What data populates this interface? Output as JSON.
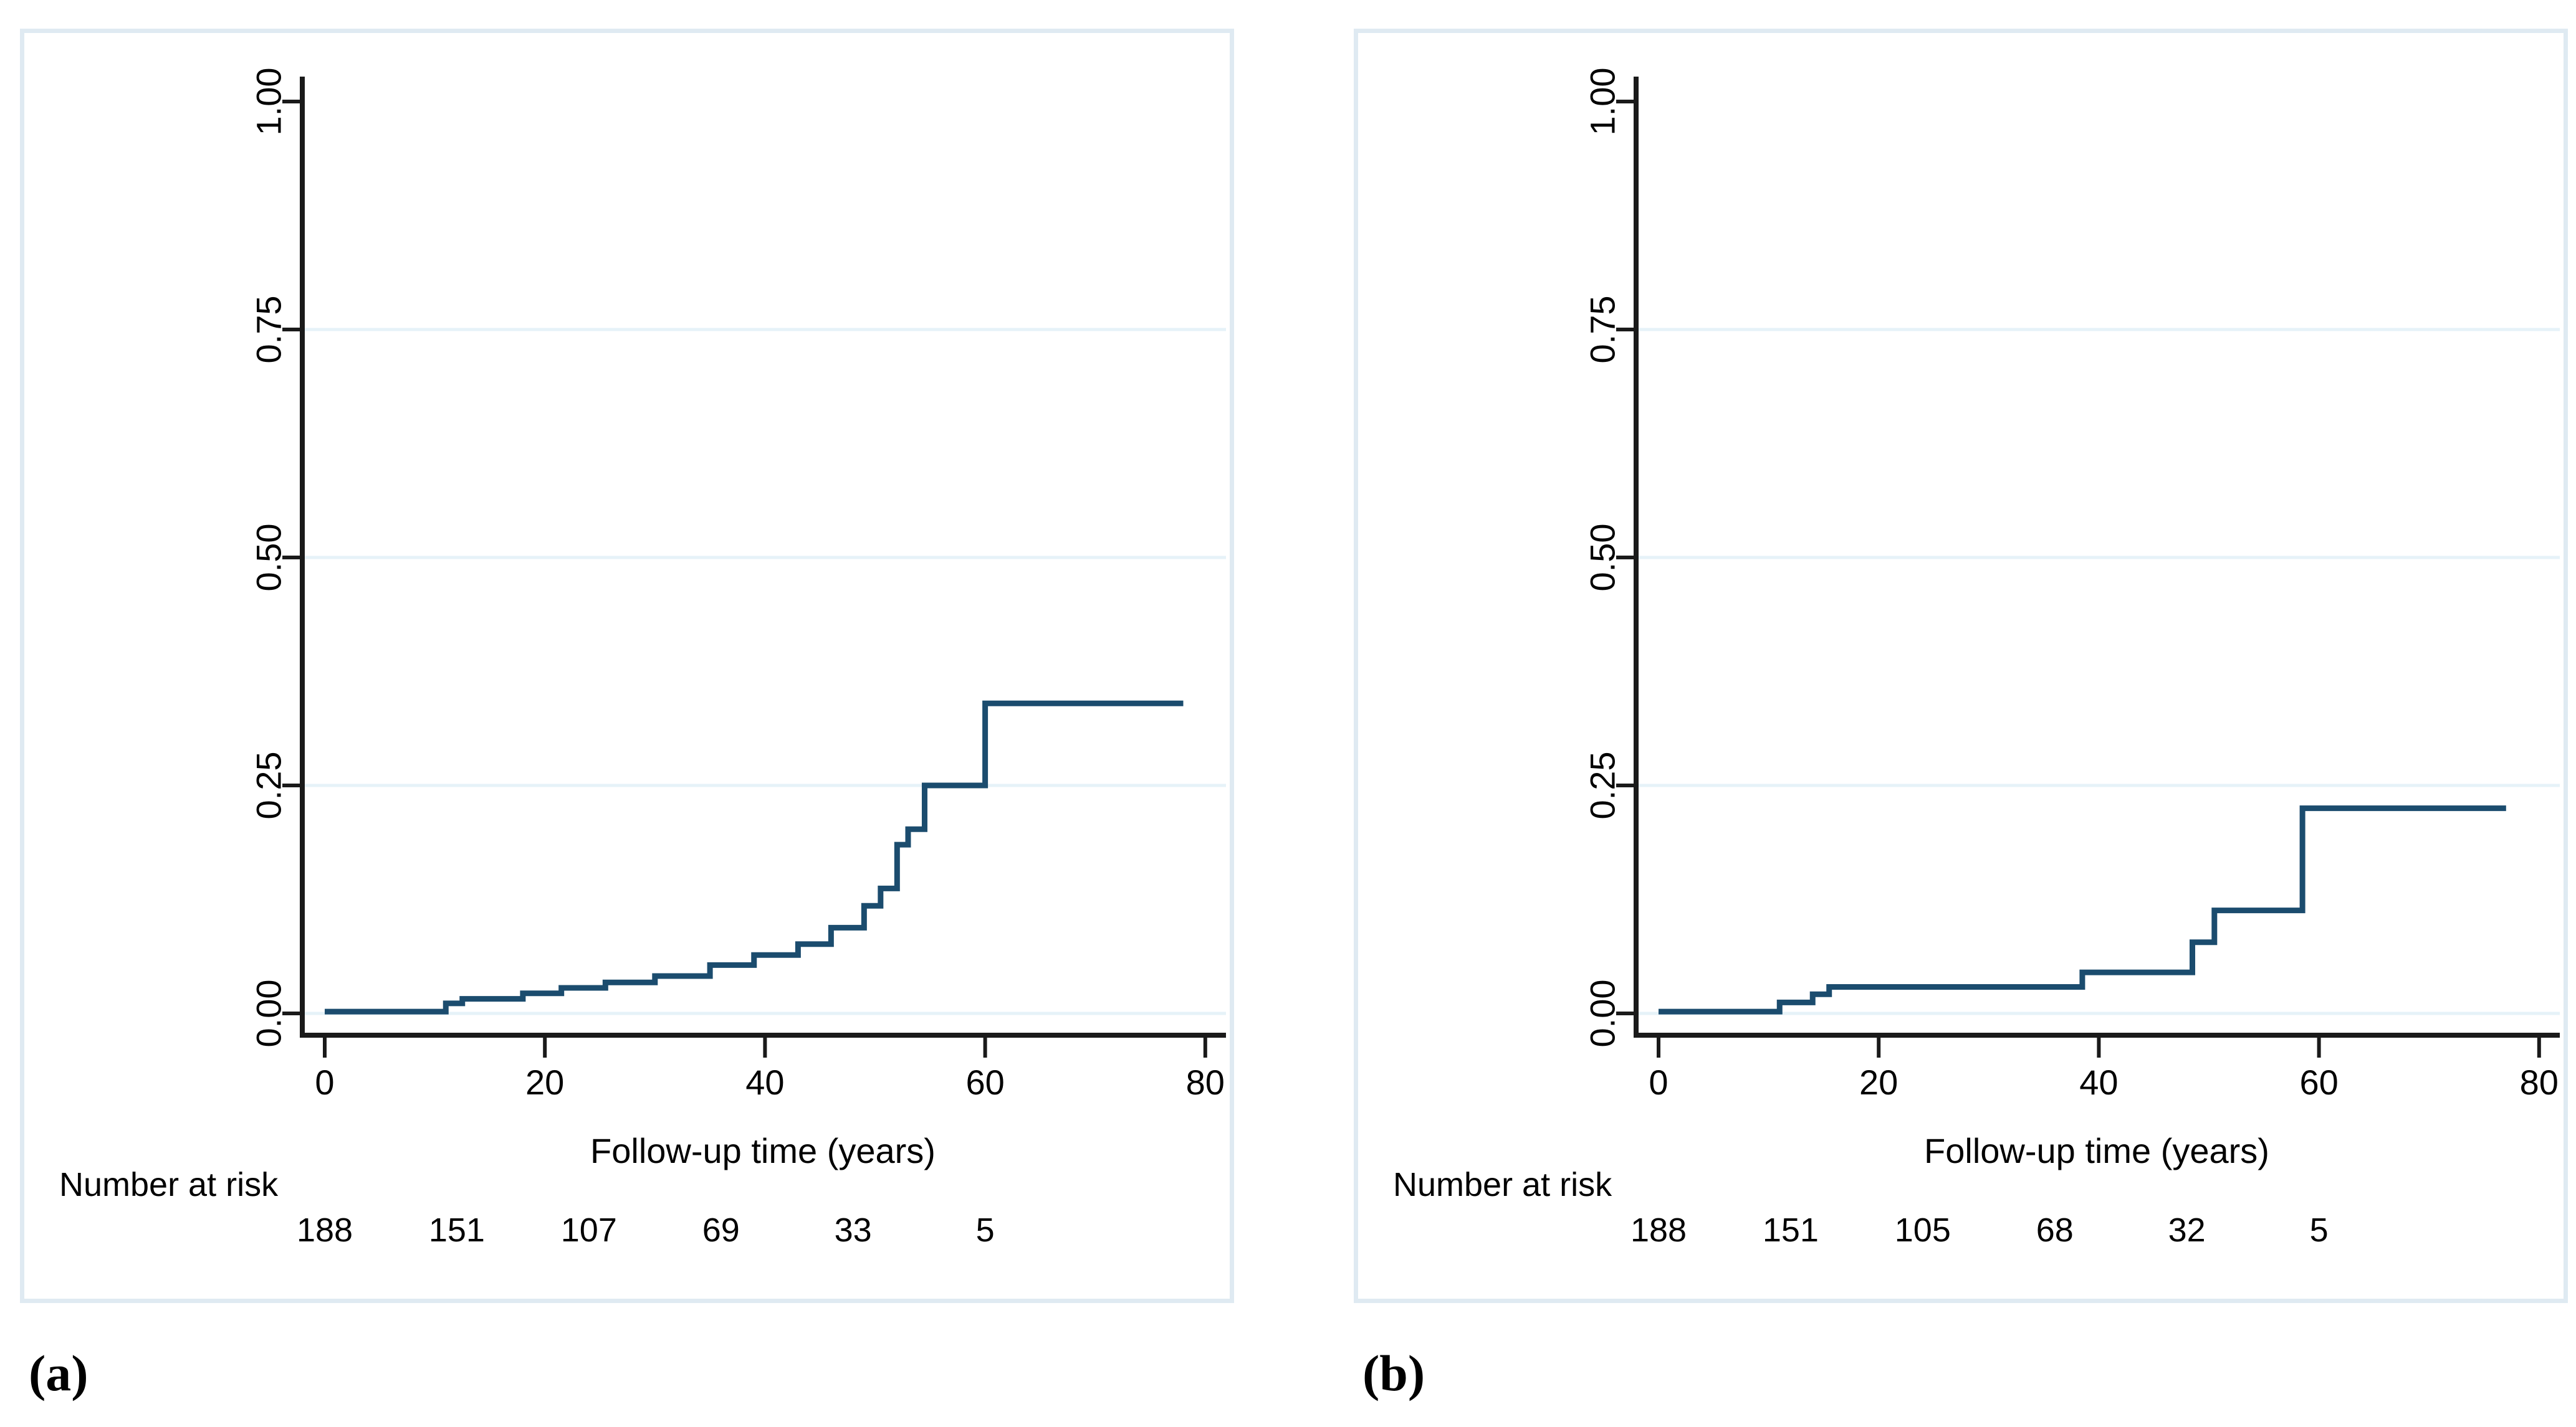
{
  "figure": {
    "panels": [
      {
        "letter": "(a)",
        "xlabel": "Follow-up time (years)",
        "risk_label": "Number at risk",
        "ytick_labels": [
          "1.00",
          "0.75",
          "0.50",
          "0.25",
          "0.00"
        ],
        "xtick_labels": [
          "0",
          "20",
          "40",
          "60",
          "80"
        ],
        "number_at_risk": [
          "188",
          "151",
          "107",
          "69",
          "33",
          "5"
        ]
      },
      {
        "letter": "(b)",
        "xlabel": "Follow-up time (years)",
        "risk_label": "Number at risk",
        "ytick_labels": [
          "1.00",
          "0.75",
          "0.50",
          "0.25",
          "0.00"
        ],
        "xtick_labels": [
          "0",
          "20",
          "40",
          "60",
          "80"
        ],
        "number_at_risk": [
          "188",
          "151",
          "105",
          "68",
          "32",
          "5"
        ]
      }
    ]
  },
  "chart_data": [
    {
      "type": "line",
      "style": "step-after",
      "panel": "a",
      "title": "",
      "xlabel": "Follow-up time (years)",
      "ylabel": "",
      "xlim": [
        0,
        80
      ],
      "ylim": [
        0,
        1
      ],
      "xticks": [
        0,
        20,
        40,
        60,
        80
      ],
      "yticks": [
        0,
        0.25,
        0.5,
        0.75,
        1
      ],
      "grid": true,
      "gridline_values": [
        0,
        0.25,
        0.5,
        0.75
      ],
      "points": [
        [
          0,
          0.002
        ],
        [
          11,
          0.011
        ],
        [
          12.5,
          0.016
        ],
        [
          18,
          0.022
        ],
        [
          21.5,
          0.028
        ],
        [
          25.5,
          0.034
        ],
        [
          30,
          0.041
        ],
        [
          35,
          0.053
        ],
        [
          39,
          0.064
        ],
        [
          43,
          0.076
        ],
        [
          46,
          0.094
        ],
        [
          49,
          0.118
        ],
        [
          50.5,
          0.137
        ],
        [
          52,
          0.185
        ],
        [
          53,
          0.202
        ],
        [
          54.5,
          0.25
        ],
        [
          60,
          0.34
        ],
        [
          78,
          0.34
        ]
      ],
      "number_at_risk": {
        "times": [
          0,
          12,
          24,
          36,
          48,
          60
        ],
        "counts": [
          188,
          151,
          107,
          69,
          33,
          5
        ]
      }
    },
    {
      "type": "line",
      "style": "step-after",
      "panel": "b",
      "title": "",
      "xlabel": "Follow-up time (years)",
      "ylabel": "",
      "xlim": [
        0,
        80
      ],
      "ylim": [
        0,
        1
      ],
      "xticks": [
        0,
        20,
        40,
        60,
        80
      ],
      "yticks": [
        0,
        0.25,
        0.5,
        0.75,
        1
      ],
      "grid": true,
      "gridline_values": [
        0,
        0.25,
        0.5,
        0.75
      ],
      "points": [
        [
          0,
          0.002
        ],
        [
          11,
          0.012
        ],
        [
          14,
          0.021
        ],
        [
          15.5,
          0.029
        ],
        [
          38.5,
          0.045
        ],
        [
          48.5,
          0.078
        ],
        [
          50.5,
          0.113
        ],
        [
          58.5,
          0.225
        ],
        [
          77,
          0.225
        ]
      ],
      "number_at_risk": {
        "times": [
          0,
          12,
          24,
          36,
          48,
          60
        ],
        "counts": [
          188,
          151,
          105,
          68,
          32,
          5
        ]
      }
    }
  ],
  "colors": {
    "curve": "#1b4c6e",
    "grid": "#e6f2f8",
    "panel_border": "#dfeaf2",
    "axis": "#1a1a1a",
    "background": "#ffffff"
  }
}
